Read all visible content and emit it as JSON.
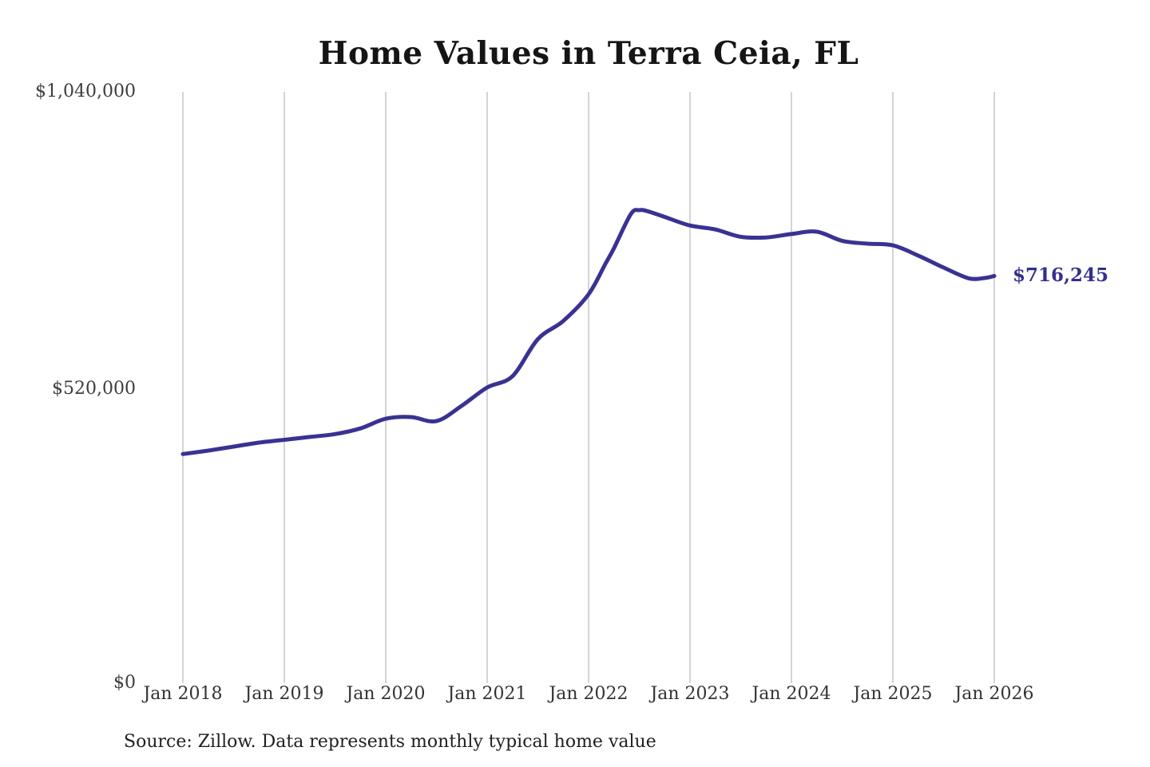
{
  "title": "Home Values in Terra Ceia, FL",
  "source_note": "Source: Zillow. Data represents monthly typical home value",
  "end_label": "$716,245",
  "colors": {
    "line": "#3a3292",
    "end_label": "#33308f",
    "grid": "#cfcfcf",
    "title": "#151515",
    "axis_text": "#3d3d3d"
  },
  "chart_data": {
    "type": "line",
    "title": "Home Values in Terra Ceia, FL",
    "xlabel": "",
    "ylabel": "",
    "grid": "vertical-only",
    "legend": "none",
    "ylim": [
      0,
      1040000
    ],
    "x_ticks": [
      "Jan 2018",
      "Jan 2019",
      "Jan 2020",
      "Jan 2021",
      "Jan 2022",
      "Jan 2023",
      "Jan 2024",
      "Jan 2025",
      "Jan 2026"
    ],
    "y_ticks": [
      {
        "label": "$0",
        "value": 0
      },
      {
        "label": "$520,000",
        "value": 520000
      },
      {
        "label": "$1,040,000",
        "value": 1040000
      }
    ],
    "final_value": 716245,
    "series": [
      {
        "name": "Monthly typical home value",
        "points": [
          {
            "date": "2018-01",
            "value": 403000
          },
          {
            "date": "2018-04",
            "value": 409000
          },
          {
            "date": "2018-07",
            "value": 416000
          },
          {
            "date": "2018-10",
            "value": 423000
          },
          {
            "date": "2019-01",
            "value": 428000
          },
          {
            "date": "2019-04",
            "value": 433000
          },
          {
            "date": "2019-07",
            "value": 438000
          },
          {
            "date": "2019-10",
            "value": 448000
          },
          {
            "date": "2020-01",
            "value": 465000
          },
          {
            "date": "2020-04",
            "value": 468000
          },
          {
            "date": "2020-07",
            "value": 461000
          },
          {
            "date": "2020-10",
            "value": 488000
          },
          {
            "date": "2021-01",
            "value": 520000
          },
          {
            "date": "2021-04",
            "value": 540000
          },
          {
            "date": "2021-07",
            "value": 605000
          },
          {
            "date": "2021-10",
            "value": 637000
          },
          {
            "date": "2022-01",
            "value": 684000
          },
          {
            "date": "2022-03",
            "value": 738000
          },
          {
            "date": "2022-04",
            "value": 765000
          },
          {
            "date": "2022-06",
            "value": 825000
          },
          {
            "date": "2022-07",
            "value": 832000
          },
          {
            "date": "2022-08",
            "value": 830000
          },
          {
            "date": "2022-10",
            "value": 820000
          },
          {
            "date": "2023-01",
            "value": 805000
          },
          {
            "date": "2023-04",
            "value": 798000
          },
          {
            "date": "2023-07",
            "value": 785000
          },
          {
            "date": "2023-10",
            "value": 784000
          },
          {
            "date": "2024-01",
            "value": 790000
          },
          {
            "date": "2024-04",
            "value": 794000
          },
          {
            "date": "2024-07",
            "value": 778000
          },
          {
            "date": "2024-10",
            "value": 773000
          },
          {
            "date": "2025-01",
            "value": 770000
          },
          {
            "date": "2025-04",
            "value": 752000
          },
          {
            "date": "2025-07",
            "value": 731000
          },
          {
            "date": "2025-10",
            "value": 712000
          },
          {
            "date": "2025-12",
            "value": 713000
          },
          {
            "date": "2026-01",
            "value": 716245
          }
        ]
      }
    ]
  }
}
